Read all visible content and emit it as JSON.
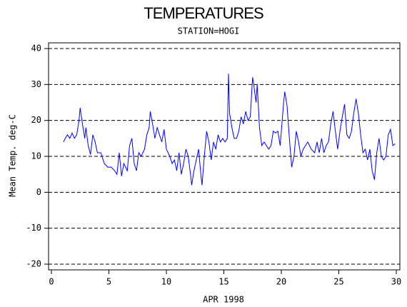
{
  "chart_data": {
    "type": "line",
    "title": "TEMPERATURES",
    "subtitle": "STATION=HOGI",
    "x_label": "APR 1998",
    "y_label": "Mean Temp. deg-C",
    "xlim": [
      0,
      30
    ],
    "xticks": [
      0,
      5,
      10,
      15,
      20,
      25,
      30
    ],
    "ylim": [
      -20,
      40
    ],
    "yticks": [
      -20,
      -10,
      0,
      10,
      20,
      30,
      40
    ],
    "grid": true,
    "x": [
      1.05,
      1.2,
      1.4,
      1.6,
      1.8,
      2.0,
      2.2,
      2.4,
      2.5,
      2.7,
      2.9,
      3.0,
      3.2,
      3.4,
      3.6,
      3.8,
      4.0,
      4.3,
      4.6,
      4.9,
      5.2,
      5.5,
      5.7,
      5.9,
      6.1,
      6.3,
      6.6,
      6.8,
      7.0,
      7.2,
      7.4,
      7.6,
      7.8,
      8.1,
      8.3,
      8.5,
      8.6,
      8.8,
      9.0,
      9.2,
      9.4,
      9.6,
      9.8,
      10.0,
      10.3,
      10.5,
      10.7,
      10.9,
      11.1,
      11.3,
      11.5,
      11.7,
      11.9,
      12.1,
      12.2,
      12.4,
      12.6,
      12.8,
      13.0,
      13.1,
      13.3,
      13.5,
      13.7,
      13.9,
      14.1,
      14.3,
      14.5,
      14.7,
      14.9,
      15.1,
      15.3,
      15.4,
      15.5,
      15.7,
      15.9,
      16.1,
      16.3,
      16.5,
      16.7,
      16.9,
      17.1,
      17.3,
      17.5,
      17.6,
      17.8,
      17.9,
      18.1,
      18.3,
      18.5,
      18.7,
      18.9,
      19.1,
      19.3,
      19.5,
      19.7,
      19.9,
      20.2,
      20.3,
      20.5,
      20.7,
      20.9,
      21.1,
      21.3,
      21.5,
      21.7,
      21.9,
      22.1,
      22.3,
      22.6,
      22.9,
      23.1,
      23.3,
      23.5,
      23.7,
      23.9,
      24.1,
      24.3,
      24.5,
      24.7,
      24.9,
      25.1,
      25.3,
      25.5,
      25.7,
      25.9,
      26.1,
      26.3,
      26.5,
      26.7,
      26.9,
      27.1,
      27.3,
      27.5,
      27.7,
      27.9,
      28.1,
      28.3,
      28.5,
      28.7,
      28.9,
      29.1,
      29.3,
      29.5,
      29.7,
      29.9
    ],
    "series": [
      {
        "name": "Mean Temp.",
        "color": "#0000ff",
        "values": [
          14,
          15,
          16,
          15,
          16.5,
          15,
          16,
          20,
          23.5,
          19,
          15,
          18,
          13,
          10.5,
          16,
          14,
          11,
          11,
          8,
          7,
          7,
          6,
          5,
          11,
          4.5,
          8,
          6,
          13,
          15,
          8,
          6,
          11,
          10,
          12,
          16,
          18,
          22.5,
          19,
          15,
          18,
          16,
          14,
          17.5,
          12,
          10,
          8,
          9,
          6,
          11,
          5,
          8,
          12,
          10,
          5,
          2,
          6,
          9,
          12,
          5,
          2,
          10,
          17,
          14,
          9,
          14,
          12,
          16,
          14,
          15,
          14,
          15,
          33,
          22,
          18,
          15,
          15,
          17,
          21,
          19,
          22.5,
          20,
          21,
          32,
          30,
          25,
          30,
          18,
          13,
          14,
          13,
          12,
          13,
          17,
          16.5,
          17,
          13,
          25,
          28,
          24,
          15,
          7,
          10,
          17,
          14,
          10,
          12,
          13,
          14,
          12,
          11,
          14,
          11,
          15,
          11,
          13,
          14,
          19,
          22.5,
          17,
          12,
          17,
          21,
          24.5,
          16,
          15,
          17,
          22,
          26,
          22,
          16,
          11,
          12,
          9,
          12,
          6,
          3.5,
          11,
          15,
          10,
          9,
          10,
          16,
          17.5,
          13,
          13.5
        ]
      }
    ]
  }
}
